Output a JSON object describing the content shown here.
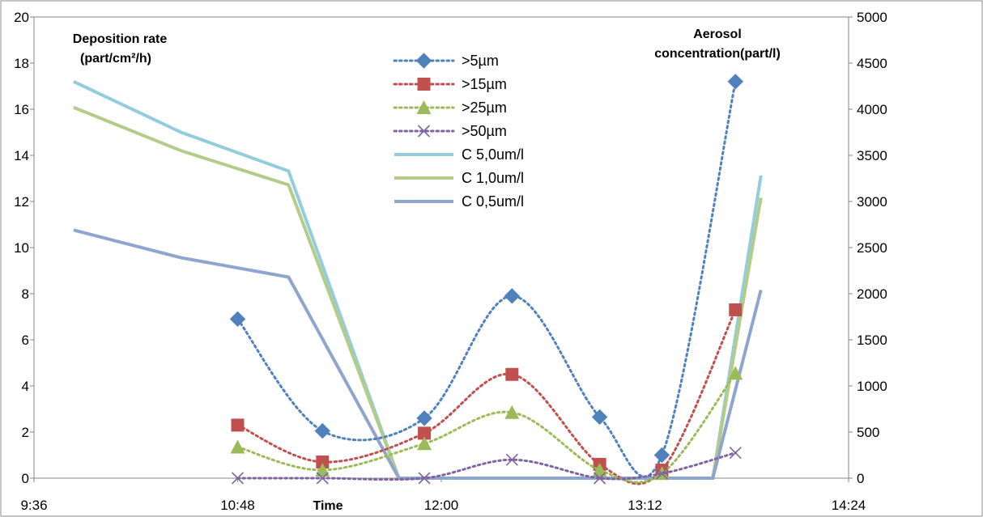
{
  "chart_data": {
    "type": "line",
    "title": "",
    "xlabel": "Time",
    "ylabel_left": [
      "Deposition rate",
      "(part/cm²/h)"
    ],
    "ylabel_right": [
      "Aerosol",
      "concentration(part/l)"
    ],
    "x_ticks": [
      "9:36",
      "10:48",
      "12:00",
      "13:12",
      "14:24"
    ],
    "xlim": [
      "9:36",
      "14:24"
    ],
    "ylim_left": [
      0,
      20
    ],
    "ylim_right": [
      0,
      5000
    ],
    "y_ticks_left": [
      0,
      2,
      4,
      6,
      8,
      10,
      12,
      14,
      16,
      18,
      20
    ],
    "y_ticks_right": [
      0,
      500,
      1000,
      1500,
      2000,
      2500,
      3000,
      3500,
      4000,
      4500,
      5000
    ],
    "grid": "none",
    "legend_position": "top-center",
    "series": [
      {
        "name": ">5µm",
        "axis": "left",
        "style": "dotted",
        "marker": "diamond",
        "color": "#4F81BD",
        "points": [
          [
            "10:48",
            6.9
          ],
          [
            "11:18",
            2.05
          ],
          [
            "11:54",
            2.6
          ],
          [
            "12:25",
            7.9
          ],
          [
            "12:56",
            2.65
          ],
          [
            "13:18",
            1.0
          ],
          [
            "13:44",
            17.2
          ]
        ]
      },
      {
        "name": ">15µm",
        "axis": "left",
        "style": "dotted",
        "marker": "square",
        "color": "#C0504D",
        "points": [
          [
            "10:48",
            2.3
          ],
          [
            "11:18",
            0.7
          ],
          [
            "11:54",
            1.95
          ],
          [
            "12:25",
            4.5
          ],
          [
            "12:56",
            0.6
          ],
          [
            "13:18",
            0.35
          ],
          [
            "13:44",
            7.3
          ]
        ]
      },
      {
        "name": ">25µm",
        "axis": "left",
        "style": "dotted",
        "marker": "triangle",
        "color": "#9BBB59",
        "points": [
          [
            "10:48",
            1.35
          ],
          [
            "11:18",
            0.35
          ],
          [
            "11:54",
            1.5
          ],
          [
            "12:25",
            2.85
          ],
          [
            "12:56",
            0.35
          ],
          [
            "13:18",
            0.2
          ],
          [
            "13:44",
            4.55
          ]
        ]
      },
      {
        "name": ">50µm",
        "axis": "left",
        "style": "dotted",
        "marker": "x",
        "color": "#8064A2",
        "points": [
          [
            "10:48",
            0.0
          ],
          [
            "11:18",
            0.0
          ],
          [
            "11:54",
            0.0
          ],
          [
            "12:25",
            0.8
          ],
          [
            "12:56",
            0.0
          ],
          [
            "13:18",
            0.2
          ],
          [
            "13:44",
            1.1
          ]
        ]
      },
      {
        "name": "C 5,0um/l",
        "axis": "right",
        "style": "solid",
        "marker": "none",
        "color": "#93CDDD",
        "points": [
          [
            "9:50",
            4300
          ],
          [
            "10:28",
            3750
          ],
          [
            "11:06",
            3330
          ],
          [
            "11:45",
            0
          ],
          [
            "13:36",
            0
          ],
          [
            "13:53",
            3280
          ]
        ]
      },
      {
        "name": "C 1,0um/l",
        "axis": "right",
        "style": "solid",
        "marker": "none",
        "color": "#B3CC8A",
        "points": [
          [
            "9:50",
            4020
          ],
          [
            "10:28",
            3550
          ],
          [
            "11:06",
            3180
          ],
          [
            "11:45",
            0
          ],
          [
            "13:36",
            0
          ],
          [
            "13:53",
            3040
          ]
        ]
      },
      {
        "name": "C 0,5um/l",
        "axis": "right",
        "style": "solid",
        "marker": "none",
        "color": "#8EA6CF",
        "points": [
          [
            "9:50",
            2690
          ],
          [
            "10:28",
            2390
          ],
          [
            "11:06",
            2180
          ],
          [
            "11:45",
            0
          ],
          [
            "13:36",
            0
          ],
          [
            "13:53",
            2040
          ]
        ]
      }
    ]
  }
}
